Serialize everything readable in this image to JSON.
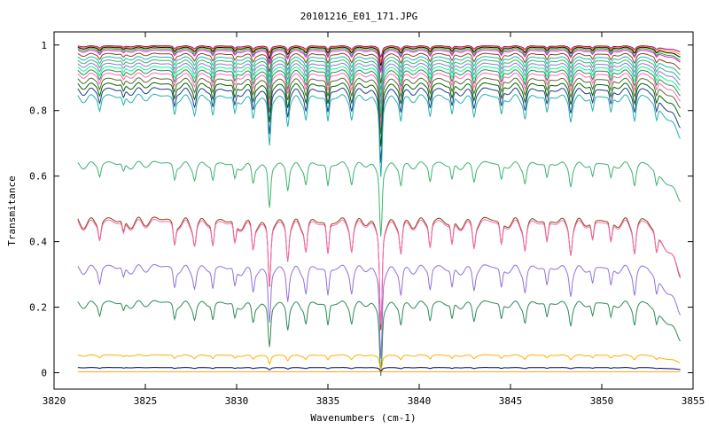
{
  "chart_data": {
    "type": "line",
    "title": "20101216_E01_171.JPG",
    "xlabel": "Wavenumbers (cm-1)",
    "ylabel": "Transmitance",
    "xlim": [
      3820,
      3855
    ],
    "ylim": [
      -0.05,
      1.04
    ],
    "x_data_range": [
      3821.3,
      3854.3
    ],
    "xticks": [
      3820,
      3825,
      3830,
      3835,
      3840,
      3845,
      3850,
      3855
    ],
    "yticks": [
      0,
      0.2,
      0.4,
      0.6,
      0.8,
      1
    ],
    "xtick_labels": [
      "3820",
      "3825",
      "3830",
      "3835",
      "3840",
      "3845",
      "3850",
      "3855"
    ],
    "ytick_labels": [
      "0",
      "0.2",
      "0.4",
      "0.6",
      "0.8",
      "1"
    ],
    "grid": false,
    "legend": "none",
    "absorption_lines": [
      {
        "x": 3822.5,
        "strength": 0.15
      },
      {
        "x": 3823.8,
        "strength": 0.12
      },
      {
        "x": 3826.6,
        "strength": 0.2
      },
      {
        "x": 3827.7,
        "strength": 0.15
      },
      {
        "x": 3828.7,
        "strength": 0.22
      },
      {
        "x": 3829.9,
        "strength": 0.2
      },
      {
        "x": 3830.9,
        "strength": 0.22
      },
      {
        "x": 3831.8,
        "strength": 0.55
      },
      {
        "x": 3832.8,
        "strength": 0.3
      },
      {
        "x": 3833.8,
        "strength": 0.22
      },
      {
        "x": 3835.0,
        "strength": 0.3
      },
      {
        "x": 3836.3,
        "strength": 0.2
      },
      {
        "x": 3837.9,
        "strength": 0.9
      },
      {
        "x": 3839.0,
        "strength": 0.25
      },
      {
        "x": 3840.6,
        "strength": 0.22
      },
      {
        "x": 3841.8,
        "strength": 0.22
      },
      {
        "x": 3843.0,
        "strength": 0.2
      },
      {
        "x": 3844.5,
        "strength": 0.22
      },
      {
        "x": 3845.8,
        "strength": 0.2
      },
      {
        "x": 3847.0,
        "strength": 0.2
      },
      {
        "x": 3848.3,
        "strength": 0.22
      },
      {
        "x": 3849.5,
        "strength": 0.18
      },
      {
        "x": 3850.5,
        "strength": 0.2
      },
      {
        "x": 3851.8,
        "strength": 0.22
      },
      {
        "x": 3853.0,
        "strength": 0.18
      }
    ],
    "series": [
      {
        "color": "#a000a0",
        "baseline": 0.998,
        "depth": 0.03
      },
      {
        "color": "#ff8c00",
        "baseline": 0.996,
        "depth": 0.04
      },
      {
        "color": "#000000",
        "baseline": 0.994,
        "depth": 0.05
      },
      {
        "color": "#00c000",
        "baseline": 0.99,
        "depth": 0.06
      },
      {
        "color": "#ff00ff",
        "baseline": 0.985,
        "depth": 0.06
      },
      {
        "color": "#8b4513",
        "baseline": 0.975,
        "depth": 0.08
      },
      {
        "color": "#20b2aa",
        "baseline": 0.965,
        "depth": 0.09
      },
      {
        "color": "#3cb371",
        "baseline": 0.955,
        "depth": 0.1
      },
      {
        "color": "#9370db",
        "baseline": 0.945,
        "depth": 0.11
      },
      {
        "color": "#00ff7f",
        "baseline": 0.935,
        "depth": 0.12
      },
      {
        "color": "#2e8b57",
        "baseline": 0.925,
        "depth": 0.13
      },
      {
        "color": "#ff69b4",
        "baseline": 0.915,
        "depth": 0.14
      },
      {
        "color": "#556b2f",
        "baseline": 0.9,
        "depth": 0.15
      },
      {
        "color": "#006400",
        "baseline": 0.885,
        "depth": 0.17
      },
      {
        "color": "#1e3a8a",
        "baseline": 0.87,
        "depth": 0.2
      },
      {
        "color": "#20b2aa",
        "baseline": 0.85,
        "depth": 0.22
      },
      {
        "color": "#3cb371",
        "baseline": 0.645,
        "depth": 0.2
      },
      {
        "color": "#8b4513",
        "baseline": 0.475,
        "depth": 0.3
      },
      {
        "color": "#ff69b4",
        "baseline": 0.468,
        "depth": 0.28
      },
      {
        "color": "#9370db",
        "baseline": 0.33,
        "depth": 0.25
      },
      {
        "color": "#2e8b57",
        "baseline": 0.22,
        "depth": 0.2
      },
      {
        "color": "#ffb000",
        "baseline": 0.055,
        "depth": 0.04
      },
      {
        "color": "#000080",
        "baseline": 0.016,
        "depth": 0.01
      },
      {
        "color": "#ffa500",
        "baseline": 0.003,
        "depth": 0.0
      }
    ]
  }
}
